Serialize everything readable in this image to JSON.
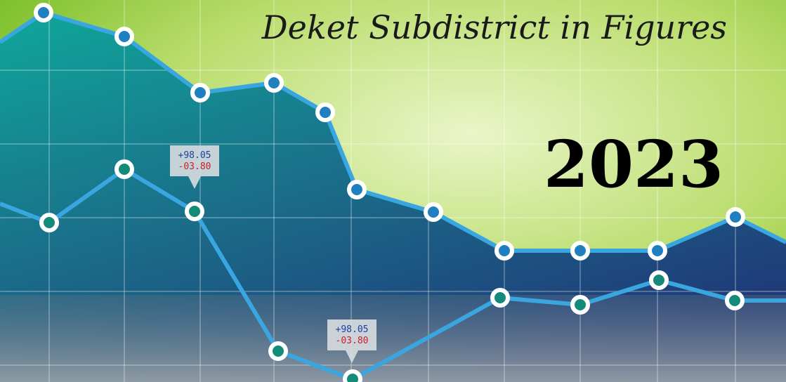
{
  "cover": {
    "title": "Deket Subdistrict in Figures",
    "year": "2023",
    "callouts": [
      {
        "up": "+98.05",
        "down": "-03.80"
      },
      {
        "up": "+98.05",
        "down": "-03.80"
      }
    ]
  }
}
